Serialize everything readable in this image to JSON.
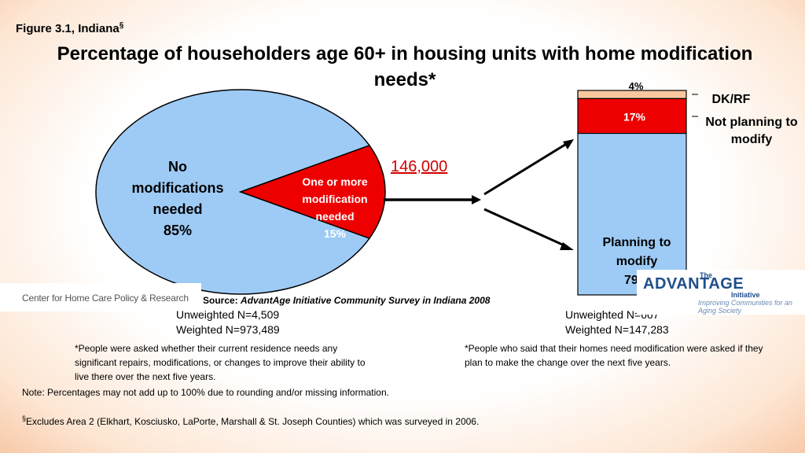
{
  "figure_label": "Figure 3.1, Indiana",
  "figure_label_mark": "§",
  "title": "Percentage of householders age 60+ in housing units with home modification needs*",
  "callout_number": "146,000",
  "left_caption": "Center for Home Care Policy & Research",
  "source_prefix": "Source:",
  "source_text": "AdvantAge Initiative Community Survey in Indiana 2008",
  "left_stats": {
    "unweighted": "Unweighted N=4,509",
    "weighted": "Weighted N=973,489"
  },
  "right_stats": {
    "unweighted": "Unweighted N=667",
    "weighted": "Weighted N=147,283"
  },
  "left_note": "*People were asked whether their current residence needs any significant repairs, modifications, or changes to improve their ability to live there over the next five years.",
  "right_note": "*People who said that their homes need modification were asked if they plan to make the change over the next five years.",
  "note_rounding": "Note: Percentages may not add up to 100% due to rounding and/or missing information.",
  "note_area_mark": "§",
  "note_area": "Excludes Area 2 (Elkhart, Kosciusko, LaPorte, Marshall & St. Joseph Counties) which was surveyed in 2006.",
  "logo": {
    "main": "ADVANTAGE",
    "prefix": "The",
    "word": "Initiative",
    "tagline": "Improving Communities for an Aging Society"
  },
  "colors": {
    "blue": "#9ecbf5",
    "red": "#ee0000",
    "peach": "#f8c79e",
    "outline": "#000000"
  },
  "chart_data": [
    {
      "type": "pie",
      "slices": [
        {
          "label": "No modifications needed",
          "value": 85,
          "value_label": "85%",
          "color": "#9ecbf5"
        },
        {
          "label": "One or more modification needed",
          "value": 15,
          "value_label": "15%",
          "color": "#ee0000"
        }
      ]
    },
    {
      "type": "bar",
      "stacked": true,
      "segments": [
        {
          "label": "Planning to modify",
          "value": 79,
          "value_label": "79%",
          "color": "#9ecbf5"
        },
        {
          "label": "Not planning to modify",
          "value": 17,
          "value_label": "17%",
          "color": "#ee0000"
        },
        {
          "label": "DK/RF",
          "value": 4,
          "value_label": "4%",
          "color": "#f8c79e"
        }
      ]
    }
  ]
}
